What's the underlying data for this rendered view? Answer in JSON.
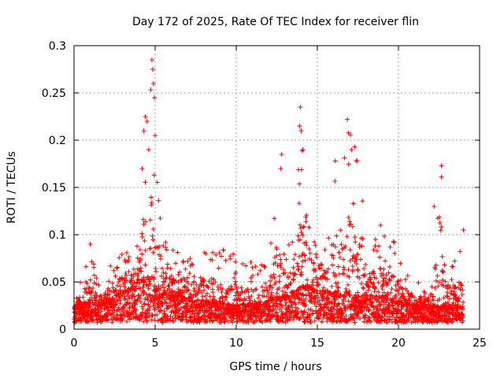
{
  "chart_data": {
    "type": "scatter",
    "title": "Day 172 of 2025, Rate Of TEC Index for receiver flin",
    "xlabel": "GPS time / hours",
    "ylabel": "ROTI / TECUs",
    "xlim": [
      0,
      25
    ],
    "ylim": [
      0,
      0.3
    ],
    "xticks": [
      0,
      5,
      10,
      15,
      20,
      25
    ],
    "yticks": [
      0,
      0.05,
      0.1,
      0.15,
      0.2,
      0.25,
      0.3
    ],
    "xtick_labels": [
      "0",
      "5",
      "10",
      "15",
      "20",
      "25"
    ],
    "ytick_labels": [
      "0",
      "0.05",
      "0.1",
      "0.15",
      "0.2",
      "0.25",
      "0.3"
    ],
    "grid": true,
    "marker": "+",
    "color": "#ff0000",
    "x_sampling_hours": 0.0417,
    "envelope": {
      "description_hours": [
        0,
        0.5,
        1,
        1.5,
        2,
        2.5,
        3,
        3.5,
        4,
        4.3,
        4.6,
        4.8,
        5,
        5.5,
        6,
        7,
        8,
        9,
        10,
        11,
        12,
        12.5,
        13,
        13.5,
        14,
        14.5,
        15,
        15.5,
        16,
        16.5,
        17,
        17.5,
        18,
        19,
        20,
        21,
        22,
        22.5,
        23,
        23.5,
        24
      ],
      "upper": [
        0.065,
        0.05,
        0.09,
        0.05,
        0.06,
        0.08,
        0.08,
        0.09,
        0.1,
        0.22,
        0.23,
        0.285,
        0.2,
        0.1,
        0.085,
        0.08,
        0.085,
        0.09,
        0.08,
        0.07,
        0.07,
        0.18,
        0.08,
        0.1,
        0.235,
        0.12,
        0.12,
        0.1,
        0.18,
        0.175,
        0.22,
        0.19,
        0.09,
        0.11,
        0.085,
        0.05,
        0.05,
        0.13,
        0.09,
        0.08,
        0.105
      ],
      "baseline": [
        0.02,
        0.02,
        0.025,
        0.025,
        0.025,
        0.03,
        0.035,
        0.04,
        0.045,
        0.05,
        0.05,
        0.05,
        0.04,
        0.035,
        0.03,
        0.03,
        0.025,
        0.025,
        0.02,
        0.02,
        0.025,
        0.03,
        0.03,
        0.035,
        0.04,
        0.04,
        0.035,
        0.035,
        0.035,
        0.035,
        0.035,
        0.03,
        0.03,
        0.03,
        0.025,
        0.02,
        0.02,
        0.02,
        0.02,
        0.02,
        0.02
      ]
    },
    "peaks": [
      {
        "x": 4.8,
        "y": 0.285
      },
      {
        "x": 4.85,
        "y": 0.275
      },
      {
        "x": 4.9,
        "y": 0.26
      },
      {
        "x": 4.95,
        "y": 0.245
      },
      {
        "x": 4.4,
        "y": 0.225
      },
      {
        "x": 4.5,
        "y": 0.22
      },
      {
        "x": 4.3,
        "y": 0.21
      },
      {
        "x": 5.0,
        "y": 0.205
      },
      {
        "x": 4.6,
        "y": 0.19
      },
      {
        "x": 4.2,
        "y": 0.17
      },
      {
        "x": 13.95,
        "y": 0.235
      },
      {
        "x": 13.9,
        "y": 0.215
      },
      {
        "x": 14.0,
        "y": 0.21
      },
      {
        "x": 14.1,
        "y": 0.19
      },
      {
        "x": 12.8,
        "y": 0.185
      },
      {
        "x": 12.75,
        "y": 0.17
      },
      {
        "x": 16.85,
        "y": 0.222
      },
      {
        "x": 17.3,
        "y": 0.193
      },
      {
        "x": 17.1,
        "y": 0.19
      },
      {
        "x": 16.1,
        "y": 0.178
      },
      {
        "x": 22.65,
        "y": 0.173
      },
      {
        "x": 22.65,
        "y": 0.161
      },
      {
        "x": 22.2,
        "y": 0.13
      },
      {
        "x": 18.9,
        "y": 0.11
      },
      {
        "x": 1.0,
        "y": 0.09
      },
      {
        "x": 24.0,
        "y": 0.105
      }
    ]
  }
}
